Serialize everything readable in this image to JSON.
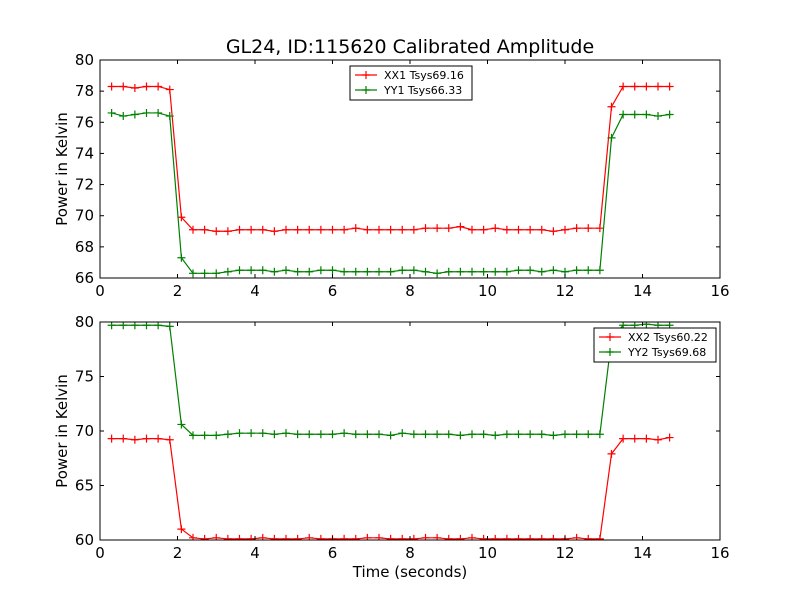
{
  "chart_data": [
    {
      "type": "line",
      "title": "GL24, ID:115620 Calibrated Amplitude",
      "xlabel": "",
      "ylabel": "Power in Kelvin",
      "xlim": [
        0,
        16
      ],
      "ylim": [
        66,
        80
      ],
      "xticks": [
        "0",
        "2",
        "4",
        "6",
        "8",
        "10",
        "12",
        "14",
        "16"
      ],
      "yticks": [
        "66",
        "68",
        "70",
        "72",
        "74",
        "76",
        "78",
        "80"
      ],
      "legend_position": "top-center",
      "marker": "+",
      "x": [
        0.3,
        0.6,
        0.9,
        1.2,
        1.5,
        1.8,
        2.1,
        2.4,
        2.7,
        3.0,
        3.3,
        3.6,
        3.9,
        4.2,
        4.5,
        4.8,
        5.1,
        5.4,
        5.7,
        6.0,
        6.3,
        6.6,
        6.9,
        7.2,
        7.5,
        7.8,
        8.1,
        8.4,
        8.7,
        9.0,
        9.3,
        9.6,
        9.9,
        10.2,
        10.5,
        10.8,
        11.1,
        11.4,
        11.7,
        12.0,
        12.3,
        12.6,
        12.9,
        13.2,
        13.5,
        13.8,
        14.1,
        14.4,
        14.7
      ],
      "series": [
        {
          "name": "XX1 Tsys69.16",
          "color": "#ff0000",
          "values": [
            78.3,
            78.3,
            78.2,
            78.3,
            78.3,
            78.1,
            69.9,
            69.1,
            69.1,
            69.0,
            69.0,
            69.1,
            69.1,
            69.1,
            69.0,
            69.1,
            69.1,
            69.1,
            69.1,
            69.1,
            69.1,
            69.2,
            69.1,
            69.1,
            69.1,
            69.1,
            69.1,
            69.2,
            69.2,
            69.2,
            69.3,
            69.1,
            69.1,
            69.2,
            69.1,
            69.1,
            69.1,
            69.1,
            69.0,
            69.1,
            69.2,
            69.2,
            69.2,
            77.0,
            78.3,
            78.3,
            78.3,
            78.3,
            78.3
          ]
        },
        {
          "name": "YY1 Tsys66.33",
          "color": "#008000",
          "values": [
            76.6,
            76.4,
            76.5,
            76.6,
            76.6,
            76.4,
            67.3,
            66.3,
            66.3,
            66.3,
            66.4,
            66.5,
            66.5,
            66.5,
            66.4,
            66.5,
            66.4,
            66.4,
            66.5,
            66.5,
            66.4,
            66.4,
            66.4,
            66.4,
            66.4,
            66.5,
            66.5,
            66.4,
            66.3,
            66.4,
            66.4,
            66.4,
            66.4,
            66.4,
            66.4,
            66.5,
            66.5,
            66.4,
            66.5,
            66.4,
            66.5,
            66.5,
            66.5,
            75.0,
            76.5,
            76.5,
            76.5,
            76.4,
            76.5
          ]
        }
      ]
    },
    {
      "type": "line",
      "title": "",
      "xlabel": "Time (seconds)",
      "ylabel": "Power in Kelvin",
      "xlim": [
        0,
        16
      ],
      "ylim": [
        60,
        80
      ],
      "xticks": [
        "0",
        "2",
        "4",
        "6",
        "8",
        "10",
        "12",
        "14",
        "16"
      ],
      "yticks": [
        "60",
        "65",
        "70",
        "75",
        "80"
      ],
      "legend_position": "top-right",
      "marker": "+",
      "x": [
        0.3,
        0.6,
        0.9,
        1.2,
        1.5,
        1.8,
        2.1,
        2.4,
        2.7,
        3.0,
        3.3,
        3.6,
        3.9,
        4.2,
        4.5,
        4.8,
        5.1,
        5.4,
        5.7,
        6.0,
        6.3,
        6.6,
        6.9,
        7.2,
        7.5,
        7.8,
        8.1,
        8.4,
        8.7,
        9.0,
        9.3,
        9.6,
        9.9,
        10.2,
        10.5,
        10.8,
        11.1,
        11.4,
        11.7,
        12.0,
        12.3,
        12.6,
        12.9,
        13.2,
        13.5,
        13.8,
        14.1,
        14.4,
        14.7
      ],
      "series": [
        {
          "name": "XX2 Tsys60.22",
          "color": "#ff0000",
          "values": [
            69.3,
            69.3,
            69.2,
            69.3,
            69.3,
            69.2,
            61.0,
            60.2,
            60.1,
            60.2,
            60.1,
            60.1,
            60.1,
            60.2,
            60.1,
            60.1,
            60.1,
            60.2,
            60.1,
            60.1,
            60.1,
            60.1,
            60.2,
            60.2,
            60.1,
            60.1,
            60.1,
            60.2,
            60.2,
            60.1,
            60.1,
            60.2,
            60.1,
            60.1,
            60.1,
            60.1,
            60.1,
            60.1,
            60.1,
            60.1,
            60.2,
            60.1,
            60.1,
            67.9,
            69.3,
            69.3,
            69.3,
            69.2,
            69.4
          ]
        },
        {
          "name": "YY2 Tsys69.68",
          "color": "#008000",
          "values": [
            79.7,
            79.7,
            79.7,
            79.7,
            79.7,
            79.6,
            70.6,
            69.6,
            69.6,
            69.6,
            69.7,
            69.8,
            69.8,
            69.8,
            69.7,
            69.8,
            69.7,
            69.7,
            69.7,
            69.7,
            69.8,
            69.7,
            69.7,
            69.7,
            69.6,
            69.8,
            69.7,
            69.7,
            69.7,
            69.7,
            69.6,
            69.7,
            69.7,
            69.6,
            69.7,
            69.7,
            69.7,
            69.7,
            69.6,
            69.7,
            69.7,
            69.7,
            69.7,
            78.4,
            79.7,
            79.7,
            79.8,
            79.7,
            79.7
          ]
        }
      ]
    }
  ]
}
